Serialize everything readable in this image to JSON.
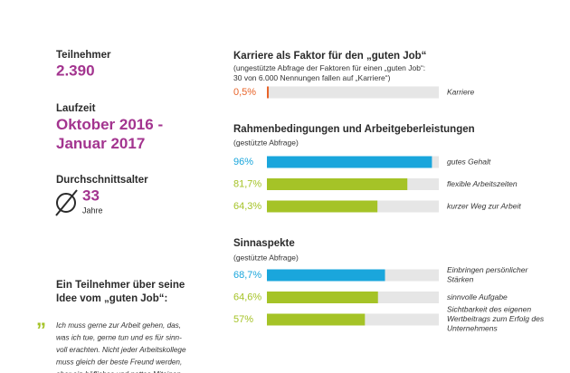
{
  "facts": [
    {
      "label": "Teilnehmer",
      "value": "2.390"
    },
    {
      "label": "Laufzeit",
      "value": "Oktober 2016 -\nJanuar 2017"
    },
    {
      "label": "Durchschnittsalter",
      "value": "33",
      "unit": "Jahre"
    }
  ],
  "quote": {
    "heading": "Ein Teilnehmer über seine\nIdee vom „guten Job“:",
    "lines": [
      "Ich muss gerne zur Arbeit gehen, das,",
      "was ich tue, gerne tun und es für sinn-",
      "voll erachten. Nicht jeder Arbeitskollege",
      "muss gleich der beste Freund werden,",
      "aber ein höfliches und nettes Miteinan-"
    ]
  },
  "chart_data": [
    {
      "type": "bar",
      "orientation": "horizontal",
      "title": "Karriere als Faktor für den „guten Job“",
      "subtitle": "(ungestützte Abfrage der Faktoren für einen „guten Job“:\n30 von 6.000 Nennungen fallen auf „Karriere“)",
      "categories": [
        "Karriere"
      ],
      "values": [
        0.5
      ],
      "value_labels": [
        "0,5%"
      ],
      "colors": [
        "#e8642a"
      ],
      "xlim": [
        0,
        100
      ]
    },
    {
      "type": "bar",
      "orientation": "horizontal",
      "title": "Rahmenbedingungen und Arbeitgeberleistungen",
      "subtitle": "(gestützte Abfrage)",
      "categories": [
        "gutes Gehalt",
        "flexible Arbeitszeiten",
        "kurzer Weg zur Arbeit"
      ],
      "values": [
        96,
        81.7,
        64.3
      ],
      "value_labels": [
        "96%",
        "81,7%",
        "64,3%"
      ],
      "colors": [
        "#1aa6dc",
        "#a5c327",
        "#a5c327"
      ],
      "xlim": [
        0,
        100
      ]
    },
    {
      "type": "bar",
      "orientation": "horizontal",
      "title": "Sinnaspekte",
      "subtitle": "(gestützte Abfrage)",
      "categories": [
        "Einbringen persönlicher\nStärken",
        "sinnvolle Aufgabe",
        "Sichtbarkeit des eigenen\nWertbeitrags zum Erfolg des\nUnternehmens"
      ],
      "values": [
        68.7,
        64.6,
        57
      ],
      "value_labels": [
        "68,7%",
        "64,6%",
        "57%"
      ],
      "colors": [
        "#1aa6dc",
        "#a5c327",
        "#a5c327"
      ],
      "xlim": [
        0,
        100
      ]
    }
  ]
}
